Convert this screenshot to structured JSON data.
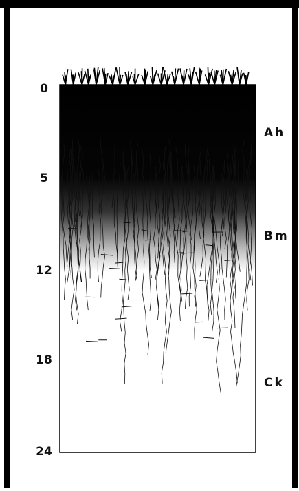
{
  "depth_labels": [
    "0",
    "5",
    "12",
    "18",
    "24"
  ],
  "horizons": [
    "Ah",
    "Bm",
    "Ck"
  ]
}
